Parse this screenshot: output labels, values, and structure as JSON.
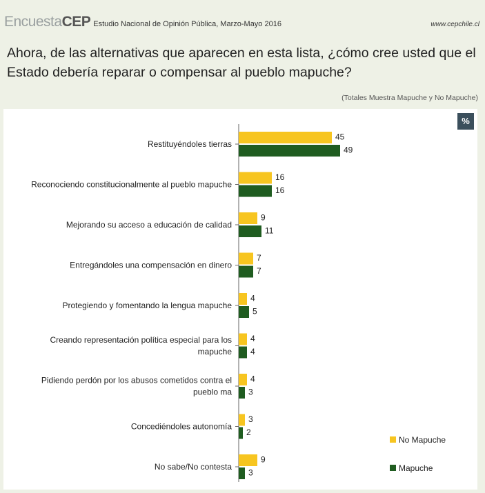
{
  "header": {
    "brand_light": "Encuesta",
    "brand_bold": "CEP",
    "survey_name": "Estudio Nacional de Opinión Pública, Marzo-Mayo 2016",
    "site": "www.cepchile.cl"
  },
  "question": "Ahora, de las alternativas que aparecen en esta lista, ¿cómo cree usted que el Estado debería reparar o compensar al pueblo mapuche?",
  "subtitle": "(Totales Muestra Mapuche y No Mapuche)",
  "unit_badge": "%",
  "colors": {
    "no_mapuche": "#f7c520",
    "mapuche": "#1f5c20"
  },
  "chart_data": {
    "type": "bar",
    "orientation": "horizontal",
    "categories": [
      [
        "Restituyéndoles tierras"
      ],
      [
        "Reconociendo constitucionalmente al pueblo mapuche"
      ],
      [
        "Mejorando su acceso a educación de calidad"
      ],
      [
        "Entregándoles una compensación en dinero"
      ],
      [
        "Protegiendo y fomentando la lengua mapuche"
      ],
      [
        "Creando representación política especial para los",
        "mapuche"
      ],
      [
        "Pidiendo perdón por los abusos cometidos contra el",
        "pueblo ma"
      ],
      [
        "Concediéndoles autonomía"
      ],
      [
        "No sabe/No contesta"
      ]
    ],
    "series": [
      {
        "name": "No Mapuche",
        "values": [
          45,
          16,
          9,
          7,
          4,
          4,
          4,
          3,
          9
        ]
      },
      {
        "name": "Mapuche",
        "values": [
          49,
          16,
          11,
          7,
          5,
          4,
          3,
          2,
          3
        ]
      }
    ],
    "xlim": [
      0,
      100
    ],
    "legend": "bottom-right",
    "grid": false
  }
}
